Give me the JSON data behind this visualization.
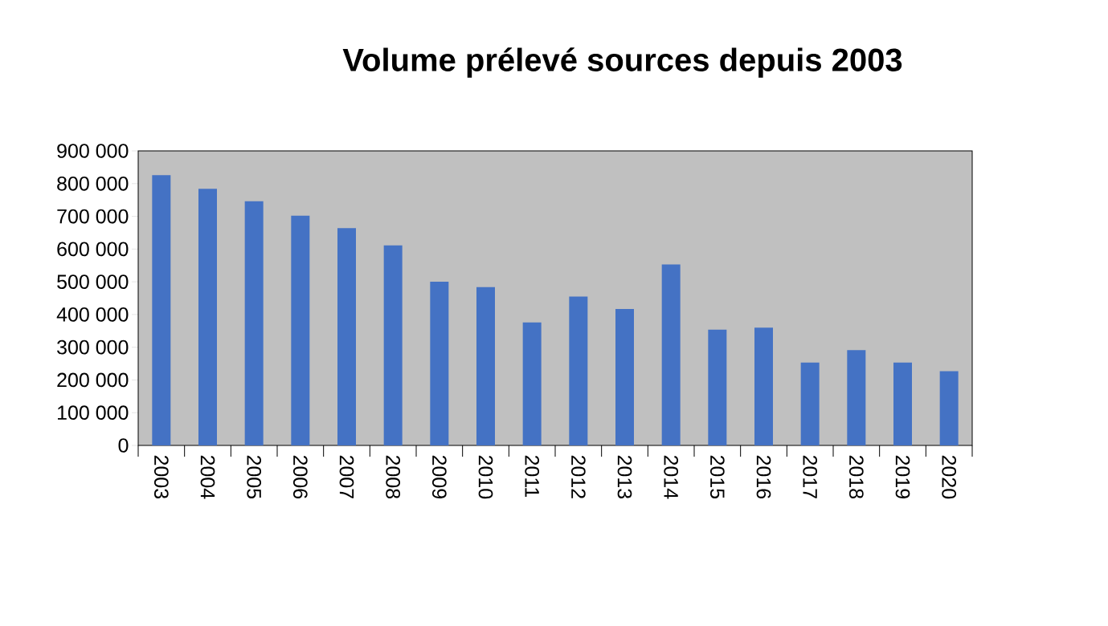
{
  "chart_data": {
    "type": "bar",
    "title": "Volume prélevé sources  depuis 2003",
    "categories": [
      "2003",
      "2004",
      "2005",
      "2006",
      "2007",
      "2008",
      "2009",
      "2010",
      "2011",
      "2012",
      "2013",
      "2014",
      "2015",
      "2016",
      "2017",
      "2018",
      "2019",
      "2020"
    ],
    "values": [
      826000,
      784000,
      746000,
      702000,
      664000,
      611000,
      500000,
      484000,
      376000,
      455000,
      417000,
      553000,
      354000,
      360000,
      253000,
      291000,
      253000,
      227000
    ],
    "color": "#4472c4",
    "ylim": [
      0,
      900000
    ],
    "yticks": [
      {
        "value": 0,
        "label": "0"
      },
      {
        "value": 100000,
        "label": "100 000"
      },
      {
        "value": 200000,
        "label": "200 000"
      },
      {
        "value": 300000,
        "label": "300 000"
      },
      {
        "value": 400000,
        "label": "400 000"
      },
      {
        "value": 500000,
        "label": "500 000"
      },
      {
        "value": 600000,
        "label": "600 000"
      },
      {
        "value": 700000,
        "label": "700 000"
      },
      {
        "value": 800000,
        "label": "800 000"
      },
      {
        "value": 900000,
        "label": "900 000"
      }
    ],
    "grid": false
  }
}
